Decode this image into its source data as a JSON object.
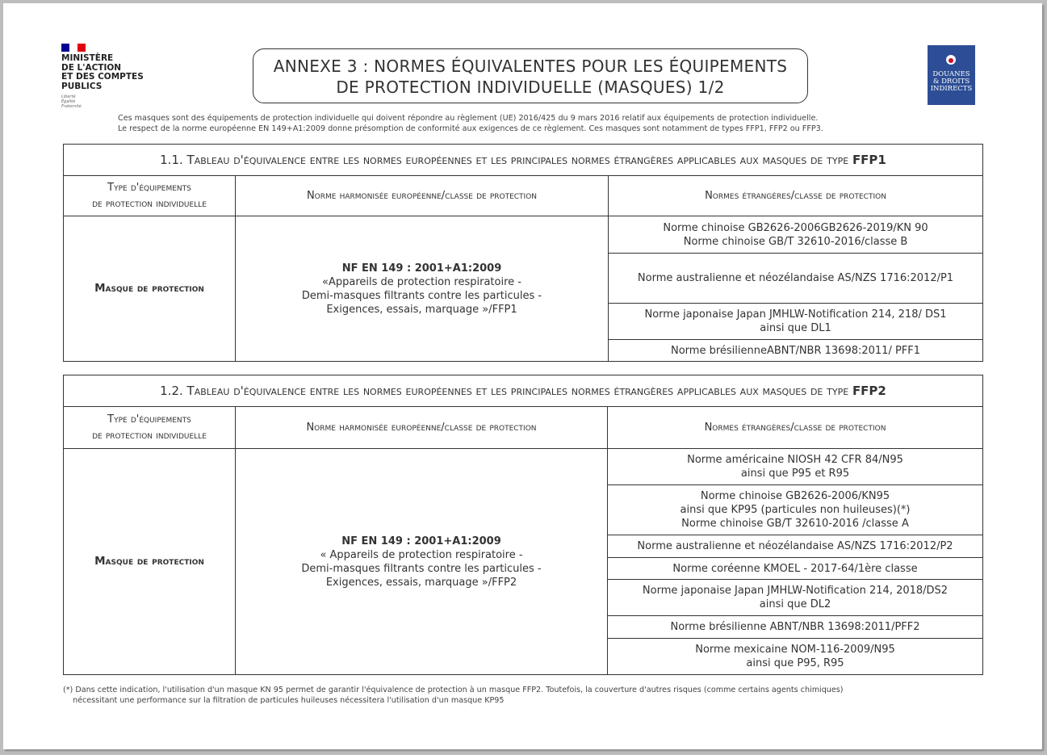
{
  "header": {
    "ministry": [
      "MINISTÈRE",
      "DE L'ACTION",
      "ET DES COMPTES",
      "PUBLICS"
    ],
    "motto": [
      "Liberté",
      "Égalité",
      "Fraternité"
    ],
    "title_line1": "ANNEXE 3 : NORMES ÉQUIVALENTES POUR LES ÉQUIPEMENTS",
    "title_line2": "DE PROTECTION INDIVIDUELLE (MASQUES) 1/2",
    "logo_text": [
      "DOUANES",
      "& DROITS",
      "INDIRECTS"
    ],
    "flag_colors": [
      "#000091",
      "#ffffff",
      "#e1000f"
    ],
    "logo_color": "#2d4e96"
  },
  "intro": [
    "Ces masques sont des équipements de protection individuelle qui doivent répondre au règlement (UE) 2016/425 du 9 mars 2016 relatif aux équipements de protection individuelle.",
    "Le respect de la norme européenne EN 149+A1:2009 donne présomption de conformité aux exigences de ce règlement. Ces masques sont notamment de types FFP1, FFP2 ou FFP3."
  ],
  "headers": {
    "type1": "Type d'équipements",
    "type2": "de protection individuelle",
    "eu": "Norme harmonisée européenne/classe de protection",
    "foreign": "Normes étrangères/classe de protection"
  },
  "table1": {
    "title": "1.1. Tableau d'équivalence entre les normes européennes et les principales normes étrangères applicables aux masques de type ",
    "title_type": "FFP1",
    "equipment": "Masque de protection",
    "eu_norm": "NF EN 149 : 2001+A1:2009",
    "eu_desc": [
      "«Appareils de protection respiratoire -",
      "Demi-masques filtrants contre les particules -",
      "Exigences, essais, marquage »/FFP1"
    ],
    "foreign": [
      [
        "Norme chinoise GB2626-2006GB2626-2019/KN 90",
        "Norme chinoise GB/T 32610-2016/classe B"
      ],
      [
        "Norme australienne et néozélandaise AS/NZS 1716:2012/P1"
      ],
      [
        "Norme japonaise Japan JMHLW-Notification 214, 218/ DS1",
        "ainsi que DL1"
      ],
      [
        "Norme brésilienneABNT/NBR 13698:2011/ PFF1"
      ]
    ]
  },
  "table2": {
    "title": "1.2. Tableau d'équivalence entre les normes européennes et les principales normes étrangères applicables aux masques de type ",
    "title_type": "FFP2",
    "equipment": "Masque de protection",
    "eu_norm": "NF EN 149 : 2001+A1:2009",
    "eu_desc": [
      "« Appareils de protection respiratoire -",
      "Demi-masques filtrants contre les particules -",
      "Exigences, essais, marquage »/FFP2"
    ],
    "foreign": [
      [
        "Norme américaine NIOSH 42 CFR 84/N95",
        "ainsi que P95 et R95"
      ],
      [
        "Norme chinoise GB2626-2006/KN95",
        "ainsi que KP95 (particules non huileuses)(*)",
        "Norme chinoise GB/T 32610-2016 /classe A"
      ],
      [
        "Norme australienne et néozélandaise AS/NZS 1716:2012/P2"
      ],
      [
        "Norme coréenne KMOEL - 2017-64/1ère classe"
      ],
      [
        "Norme japonaise Japan JMHLW-Notification 214, 2018/DS2",
        "ainsi que DL2"
      ],
      [
        "Norme brésilienne ABNT/NBR 13698:2011/PFF2"
      ],
      [
        "Norme mexicaine NOM-116-2009/N95",
        "ainsi que P95, R95"
      ]
    ]
  },
  "footnote": [
    "(*) Dans cette indication, l'utilisation d'un masque KN 95 permet de garantir l'équivalence de protection à un masque FFP2. Toutefois, la couverture d'autres risques (comme certains agents chimiques)",
    "nécessitant une performance sur la filtration de particules huileuses nécessitera l'utilisation d'un masque KP95"
  ]
}
